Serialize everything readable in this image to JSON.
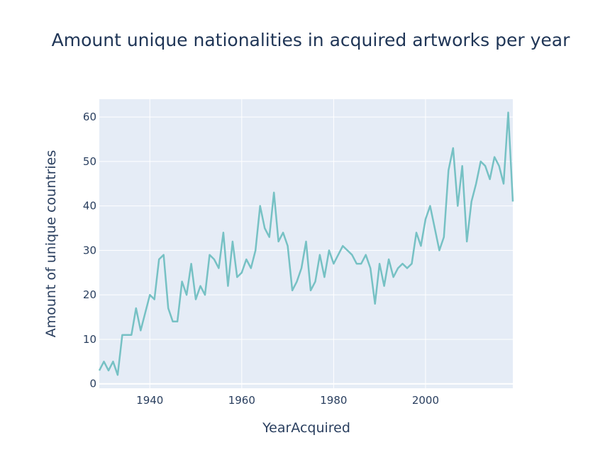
{
  "chart_data": {
    "type": "line",
    "title": "Amount unique nationalities in acquired artworks per year",
    "xlabel": "YearAcquired",
    "ylabel": "Amount of unique countries",
    "xlim": [
      1929,
      2019
    ],
    "ylim": [
      -1,
      64
    ],
    "x_ticks": [
      1940,
      1960,
      1980,
      2000
    ],
    "y_ticks": [
      0,
      10,
      20,
      30,
      40,
      50,
      60
    ],
    "grid": true,
    "colors": {
      "line": "#76c1c4",
      "plot_bg": "#e5ecf6",
      "grid": "#ffffff",
      "text": "#2a3f5f"
    },
    "series": [
      {
        "x": [
          1929,
          1930,
          1931,
          1932,
          1933,
          1934,
          1935,
          1936,
          1937,
          1938,
          1939,
          1940,
          1941,
          1942,
          1943,
          1944,
          1945,
          1946,
          1947,
          1948,
          1949,
          1950,
          1951,
          1952,
          1953,
          1954,
          1955,
          1956,
          1957,
          1958,
          1959,
          1960,
          1961,
          1962,
          1963,
          1964,
          1965,
          1966,
          1967,
          1968,
          1969,
          1970,
          1971,
          1972,
          1973,
          1974,
          1975,
          1976,
          1977,
          1978,
          1979,
          1980,
          1981,
          1982,
          1983,
          1984,
          1985,
          1986,
          1987,
          1988,
          1989,
          1990,
          1991,
          1992,
          1993,
          1994,
          1995,
          1996,
          1997,
          1998,
          1999,
          2000,
          2001,
          2002,
          2003,
          2004,
          2005,
          2006,
          2007,
          2008,
          2009,
          2010,
          2011,
          2012,
          2013,
          2014,
          2015,
          2016,
          2017,
          2018,
          2019
        ],
        "y": [
          3,
          5,
          3,
          5,
          2,
          11,
          11,
          11,
          17,
          12,
          16,
          20,
          19,
          28,
          29,
          17,
          14,
          14,
          23,
          20,
          27,
          19,
          22,
          20,
          29,
          28,
          26,
          34,
          22,
          32,
          24,
          25,
          28,
          26,
          30,
          40,
          35,
          33,
          43,
          32,
          34,
          31,
          21,
          23,
          26,
          32,
          21,
          23,
          29,
          24,
          30,
          27,
          29,
          31,
          30,
          29,
          27,
          27,
          29,
          26,
          18,
          27,
          22,
          28,
          24,
          26,
          27,
          26,
          27,
          34,
          31,
          37,
          40,
          35,
          30,
          33,
          48,
          53,
          40,
          49,
          32,
          41,
          45,
          50,
          49,
          46,
          51,
          49,
          45,
          61,
          41
        ]
      }
    ]
  }
}
